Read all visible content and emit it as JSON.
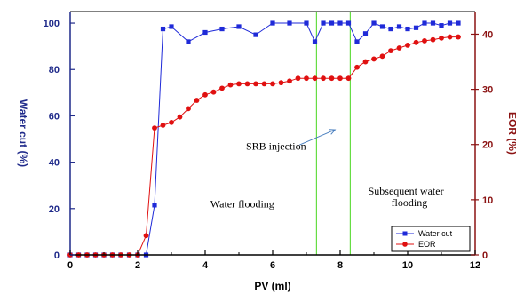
{
  "chart_data": {
    "type": "line",
    "xlabel": "PV (ml)",
    "ylabel_left": "Water cut (%)",
    "ylabel_right": "EOR (%)",
    "xlim": [
      0,
      12
    ],
    "ylim_left": [
      0,
      105
    ],
    "ylim_right": [
      0,
      44.1
    ],
    "xticks": [
      0,
      2,
      4,
      6,
      8,
      10,
      12
    ],
    "yticks_left": [
      0,
      20,
      40,
      60,
      80,
      100
    ],
    "yticks_right": [
      0,
      10,
      20,
      30,
      40
    ],
    "grid": false,
    "legend_position": "bottom-right",
    "series": [
      {
        "name": "Water cut",
        "axis": "left",
        "color": "#1f2ad8",
        "marker": "square",
        "x": [
          0,
          0.25,
          0.5,
          0.75,
          1.0,
          1.25,
          1.5,
          1.75,
          2.0,
          2.25,
          2.5,
          2.75,
          3.0,
          3.5,
          4.0,
          4.5,
          5.0,
          5.5,
          6.0,
          6.5,
          7.0,
          7.25,
          7.5,
          7.75,
          8.0,
          8.25,
          8.5,
          8.75,
          9.0,
          9.25,
          9.5,
          9.75,
          10.0,
          10.25,
          10.5,
          10.75,
          11.0,
          11.25,
          11.5
        ],
        "y": [
          0,
          0,
          0,
          0,
          0,
          0,
          0,
          0,
          0,
          0,
          21.5,
          97.5,
          98.5,
          92,
          96,
          97.5,
          98.5,
          95,
          100,
          100,
          100,
          92,
          100,
          100,
          100,
          100,
          92,
          95.5,
          100,
          98.5,
          97.5,
          98.5,
          97.5,
          98,
          100,
          100,
          99,
          100,
          100
        ]
      },
      {
        "name": "EOR",
        "axis": "right",
        "color": "#e01010",
        "marker": "circle",
        "x": [
          0,
          0.25,
          0.5,
          0.75,
          1.0,
          1.25,
          1.5,
          1.75,
          2.0,
          2.25,
          2.5,
          2.75,
          3.0,
          3.25,
          3.5,
          3.75,
          4.0,
          4.25,
          4.5,
          4.75,
          5.0,
          5.25,
          5.5,
          5.75,
          6.0,
          6.25,
          6.5,
          6.75,
          7.0,
          7.25,
          7.5,
          7.75,
          8.0,
          8.25,
          8.5,
          8.75,
          9.0,
          9.25,
          9.5,
          9.75,
          10.0,
          10.25,
          10.5,
          10.75,
          11.0,
          11.25,
          11.5
        ],
        "y": [
          0,
          0,
          0,
          0,
          0,
          0,
          0,
          0,
          0,
          3.5,
          23,
          23.5,
          24,
          25,
          26.5,
          28,
          29,
          29.5,
          30.2,
          30.8,
          31,
          31,
          31,
          31,
          31,
          31.2,
          31.5,
          32,
          32,
          32,
          32,
          32,
          32,
          32,
          34,
          35,
          35.5,
          36,
          37,
          37.5,
          38,
          38.5,
          38.8,
          39,
          39.3,
          39.5,
          39.5
        ]
      }
    ],
    "vertical_lines": [
      {
        "x": 7.3,
        "color": "#66dd44"
      },
      {
        "x": 8.3,
        "color": "#66dd44"
      }
    ],
    "annotations": [
      {
        "text": "SRB injection",
        "x": 6.1,
        "y_left": 45.5
      },
      {
        "text": "Water flooding",
        "x": 5.1,
        "y_left": 20.5
      },
      {
        "text": "Subsequent water",
        "x": 9.95,
        "y_left": 26
      },
      {
        "text": "flooding",
        "x": 10.05,
        "y_left": 21
      }
    ],
    "arrow": {
      "from": [
        6.8,
        47.5
      ],
      "to": [
        7.85,
        54
      ],
      "color": "#4a7fbf"
    }
  }
}
